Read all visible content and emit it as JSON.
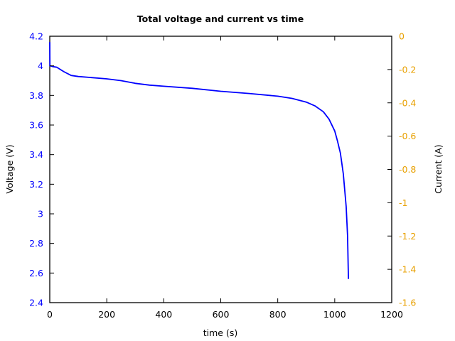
{
  "chart_data": {
    "type": "line",
    "title": "Total voltage and current vs time",
    "xlabel": "time (s)",
    "ylabel": "Voltage (V)",
    "y2label": "Current (A)",
    "xlim": [
      0,
      1200
    ],
    "ylim": [
      2.4,
      4.2
    ],
    "y2lim": [
      -1.6,
      0
    ],
    "x_ticks": [
      "0",
      "200",
      "400",
      "600",
      "800",
      "1000",
      "1200"
    ],
    "y_ticks": [
      "2.4",
      "2.6",
      "2.8",
      "3",
      "3.2",
      "3.4",
      "3.6",
      "3.8",
      "4",
      "4.2"
    ],
    "y2_ticks": [
      "-1.6",
      "-1.4",
      "-1.2",
      "-1",
      "-0.8",
      "-0.6",
      "-0.4",
      "-0.2",
      "0"
    ],
    "grid": false,
    "legend": null,
    "colors": {
      "voltage": "#0000ff",
      "left_axis": "#0000ff",
      "right_axis": "#e8a000"
    },
    "series": [
      {
        "name": "Voltage (V)",
        "axis": "left",
        "x": [
          0,
          0.5,
          2,
          10,
          25,
          50,
          75,
          100,
          150,
          200,
          250,
          300,
          350,
          400,
          500,
          600,
          700,
          800,
          850,
          900,
          930,
          960,
          980,
          1000,
          1010,
          1020,
          1030,
          1040,
          1045,
          1048
        ],
        "values": [
          4.16,
          4.0,
          4.0,
          3.995,
          3.99,
          3.96,
          3.935,
          3.928,
          3.92,
          3.912,
          3.9,
          3.882,
          3.87,
          3.862,
          3.848,
          3.828,
          3.813,
          3.795,
          3.78,
          3.755,
          3.73,
          3.69,
          3.64,
          3.56,
          3.49,
          3.41,
          3.27,
          3.05,
          2.85,
          2.56
        ]
      }
    ]
  }
}
